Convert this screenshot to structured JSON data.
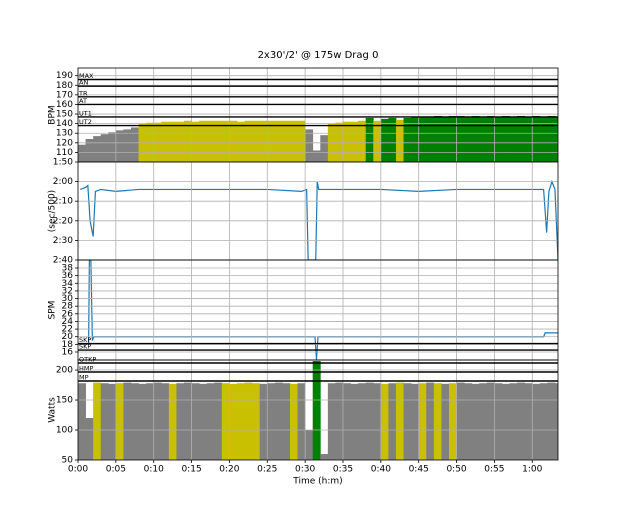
{
  "chart_data": [
    {
      "type": "bar",
      "title": "2x30'/2' @ 175w Drag 0",
      "ylabel": "BPM",
      "xlim": [
        0,
        63.4
      ],
      "xticks": [
        0,
        5,
        10,
        15,
        20,
        25,
        30,
        35,
        40,
        45,
        50,
        55,
        60
      ],
      "ylim": [
        100,
        198
      ],
      "yticks": [
        110,
        120,
        130,
        140,
        150,
        160,
        170,
        180,
        190
      ],
      "grid": true,
      "ref_lines": [
        {
          "value": 186,
          "label": "MAX"
        },
        {
          "value": 179,
          "label": "AN"
        },
        {
          "value": 168,
          "label": "TR"
        },
        {
          "value": 160,
          "label": "AT"
        },
        {
          "value": 147,
          "label": "UT1"
        },
        {
          "value": 138,
          "label": "UT2"
        }
      ],
      "x": [
        0,
        1,
        2,
        3,
        4,
        5,
        6,
        7,
        8,
        9,
        10,
        11,
        12,
        13,
        14,
        15,
        16,
        17,
        18,
        19,
        20,
        21,
        22,
        23,
        24,
        25,
        26,
        27,
        28,
        29,
        30,
        31,
        32,
        33,
        34,
        35,
        36,
        37,
        38,
        39,
        40,
        41,
        42,
        43,
        44,
        45,
        46,
        47,
        48,
        49,
        50,
        51,
        52,
        53,
        54,
        55,
        56,
        57,
        58,
        59,
        60,
        61,
        62,
        63
      ],
      "series": [
        {
          "values": [
            118,
            124,
            127,
            129,
            131,
            133,
            134,
            136,
            140,
            141,
            141,
            142,
            142,
            142,
            143,
            142,
            143,
            143,
            143,
            143,
            143,
            142,
            143,
            143,
            143,
            143,
            143,
            143,
            143,
            143,
            134,
            112,
            128,
            140,
            141,
            142,
            142,
            143,
            146,
            143,
            145,
            146,
            144,
            146,
            147,
            147,
            147,
            148,
            147,
            148,
            148,
            147,
            148,
            147,
            148,
            147,
            148,
            147,
            148,
            147,
            148,
            147,
            148,
            147
          ],
          "colors": [
            "#808080",
            "#808080",
            "#808080",
            "#808080",
            "#808080",
            "#808080",
            "#808080",
            "#808080",
            "#c8c000",
            "#c8c000",
            "#c8c000",
            "#c8c000",
            "#c8c000",
            "#c8c000",
            "#c8c000",
            "#c8c000",
            "#c8c000",
            "#c8c000",
            "#c8c000",
            "#c8c000",
            "#c8c000",
            "#c8c000",
            "#c8c000",
            "#c8c000",
            "#c8c000",
            "#c8c000",
            "#c8c000",
            "#c8c000",
            "#c8c000",
            "#c8c000",
            "#808080",
            "#808080",
            "#808080",
            "#c8c000",
            "#c8c000",
            "#c8c000",
            "#c8c000",
            "#c8c000",
            "#008000",
            "#c8c000",
            "#008000",
            "#008000",
            "#c8c000",
            "#008000",
            "#008000",
            "#008000",
            "#008000",
            "#008000",
            "#008000",
            "#008000",
            "#008000",
            "#008000",
            "#008000",
            "#008000",
            "#008000",
            "#008000",
            "#008000",
            "#008000",
            "#008000",
            "#008000",
            "#008000",
            "#008000",
            "#008000",
            "#008000"
          ]
        }
      ]
    },
    {
      "type": "line",
      "ylabel": "(sec/500)",
      "xlim": [
        0,
        63.4
      ],
      "xticks": [
        0,
        5,
        10,
        15,
        20,
        25,
        30,
        35,
        40,
        45,
        50,
        55,
        60
      ],
      "ylim": [
        160,
        110
      ],
      "yticks": [
        {
          "value": 110,
          "label": "1:50"
        },
        {
          "value": 120,
          "label": "2:00"
        },
        {
          "value": 130,
          "label": "2:10"
        },
        {
          "value": 140,
          "label": "2:20"
        },
        {
          "value": 150,
          "label": "2:30"
        },
        {
          "value": 160,
          "label": "2:40"
        }
      ],
      "grid": true,
      "x": [
        0.3,
        1,
        1.3,
        1.6,
        2,
        2.3,
        3,
        5,
        8,
        10,
        15,
        20,
        25,
        29.5,
        30.2,
        30.4,
        30.6,
        31.4,
        31.6,
        31.8,
        32.2,
        33,
        35,
        40,
        45,
        50,
        55,
        60,
        61.5,
        61.9,
        62.2,
        62.6,
        63,
        63.4
      ],
      "series": [
        {
          "color": "#1f77b4",
          "values": [
            124,
            123,
            122,
            140,
            148,
            125,
            124,
            125,
            124,
            124,
            124,
            124,
            124,
            125,
            124,
            160,
            160,
            160,
            120,
            124,
            124,
            124,
            124,
            124,
            125,
            124,
            124,
            124,
            124,
            146,
            125,
            120,
            124,
            160
          ]
        }
      ]
    },
    {
      "type": "line",
      "ylabel": "SPM",
      "xlim": [
        0,
        63.4
      ],
      "xticks": [
        0,
        5,
        10,
        15,
        20,
        25,
        30,
        35,
        40,
        45,
        50,
        55,
        60
      ],
      "ylim": [
        13.9,
        40.1
      ],
      "yticks": [
        16,
        18,
        20,
        22,
        24,
        26,
        28,
        30,
        32,
        34,
        36,
        38
      ],
      "grid": true,
      "ref_lines": [
        {
          "value": 18.2,
          "label": "SKP"
        },
        {
          "value": 16.5,
          "label": "SKP"
        }
      ],
      "x": [
        0,
        1.4,
        1.5,
        1.7,
        1.9,
        2.1,
        3,
        31.3,
        31.5,
        31.7,
        33,
        61.5,
        61.7,
        63.4
      ],
      "series": [
        {
          "color": "#1f77b4",
          "values": [
            18,
            18,
            40,
            40,
            19,
            20,
            20,
            20,
            14,
            20,
            20,
            20,
            21,
            21
          ]
        }
      ]
    },
    {
      "type": "bar",
      "ylabel": "Watts",
      "xlabel": "Time (h:m)",
      "xlim": [
        0,
        63.4
      ],
      "xticks": [
        {
          "value": 0,
          "label": "0:00"
        },
        {
          "value": 5,
          "label": "0:05"
        },
        {
          "value": 10,
          "label": "0:10"
        },
        {
          "value": 15,
          "label": "0:15"
        },
        {
          "value": 20,
          "label": "0:20"
        },
        {
          "value": 25,
          "label": "0:25"
        },
        {
          "value": 30,
          "label": "0:30"
        },
        {
          "value": 35,
          "label": "0:35"
        },
        {
          "value": 40,
          "label": "0:40"
        },
        {
          "value": 45,
          "label": "0:45"
        },
        {
          "value": 50,
          "label": "0:50"
        },
        {
          "value": 55,
          "label": "0:55"
        },
        {
          "value": 60,
          "label": "1:00"
        }
      ],
      "ylim": [
        50,
        216.7
      ],
      "yticks": [
        50,
        100,
        150,
        200
      ],
      "grid": true,
      "ref_lines": [
        {
          "value": 211.7,
          "label": "OTKP"
        },
        {
          "value": 196.7,
          "label": "HMP"
        },
        {
          "value": 181.7,
          "label": "MP"
        }
      ],
      "x": [
        0,
        1,
        2,
        3,
        4,
        5,
        6,
        7,
        8,
        9,
        10,
        11,
        12,
        13,
        14,
        15,
        16,
        17,
        18,
        19,
        20,
        21,
        22,
        23,
        24,
        25,
        26,
        27,
        28,
        29,
        30,
        31,
        32,
        33,
        34,
        35,
        36,
        37,
        38,
        39,
        40,
        41,
        42,
        43,
        44,
        45,
        46,
        47,
        48,
        49,
        50,
        51,
        52,
        53,
        54,
        55,
        56,
        57,
        58,
        59,
        60,
        61,
        62,
        63
      ],
      "series": [
        {
          "values": [
            178,
            120,
            179,
            178,
            177,
            178,
            179,
            178,
            177,
            178,
            179,
            178,
            177,
            178,
            179,
            178,
            177,
            178,
            179,
            178,
            177,
            178,
            179,
            178,
            177,
            178,
            179,
            178,
            177,
            178,
            100,
            215,
            60,
            178,
            179,
            178,
            177,
            178,
            179,
            178,
            177,
            178,
            179,
            178,
            177,
            178,
            179,
            178,
            177,
            178,
            179,
            178,
            177,
            178,
            179,
            178,
            177,
            178,
            179,
            178,
            177,
            178,
            179,
            178
          ],
          "colors": [
            "#808080",
            "#808080",
            "#c8c000",
            "#808080",
            "#808080",
            "#c8c000",
            "#808080",
            "#808080",
            "#808080",
            "#808080",
            "#808080",
            "#808080",
            "#c8c000",
            "#808080",
            "#808080",
            "#808080",
            "#808080",
            "#808080",
            "#808080",
            "#c8c000",
            "#c8c000",
            "#c8c000",
            "#c8c000",
            "#c8c000",
            "#808080",
            "#808080",
            "#808080",
            "#808080",
            "#c8c000",
            "#808080",
            "#808080",
            "#008000",
            "#808080",
            "#808080",
            "#808080",
            "#808080",
            "#808080",
            "#808080",
            "#808080",
            "#808080",
            "#c8c000",
            "#808080",
            "#c8c000",
            "#808080",
            "#808080",
            "#c8c000",
            "#808080",
            "#c8c000",
            "#808080",
            "#c8c000",
            "#808080",
            "#808080",
            "#808080",
            "#808080",
            "#808080",
            "#808080",
            "#808080",
            "#808080",
            "#808080",
            "#808080",
            "#808080",
            "#808080",
            "#808080",
            "#808080"
          ]
        }
      ]
    }
  ]
}
